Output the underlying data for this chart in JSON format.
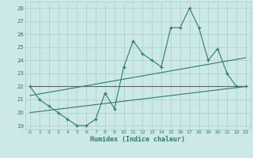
{
  "x": [
    0,
    1,
    2,
    3,
    4,
    5,
    6,
    7,
    8,
    9,
    10,
    11,
    12,
    13,
    14,
    15,
    16,
    17,
    18,
    19,
    20,
    21,
    22,
    23
  ],
  "humidex": [
    22,
    21,
    20.5,
    20,
    19.5,
    19,
    19,
    19.5,
    21.5,
    20.3,
    23.5,
    25.5,
    24.5,
    24,
    23.5,
    26.5,
    26.5,
    28,
    26.5,
    24,
    24.9,
    23,
    22,
    22
  ],
  "line1_x": [
    0,
    23
  ],
  "line1_y": [
    22,
    22
  ],
  "line2_x": [
    0,
    23
  ],
  "line2_y": [
    21.3,
    24.2
  ],
  "line3_x": [
    0,
    23
  ],
  "line3_y": [
    20.0,
    22.0
  ],
  "line_color": "#2e7b6e",
  "bg_color": "#cce8e8",
  "grid_color": "#aacece",
  "xlabel": "Humidex (Indice chaleur)",
  "ylim": [
    18.7,
    28.5
  ],
  "xlim": [
    -0.5,
    23.5
  ],
  "yticks": [
    19,
    20,
    21,
    22,
    23,
    24,
    25,
    26,
    27,
    28
  ],
  "xticks": [
    0,
    1,
    2,
    3,
    4,
    5,
    6,
    7,
    8,
    9,
    10,
    11,
    12,
    13,
    14,
    15,
    16,
    17,
    18,
    19,
    20,
    21,
    22,
    23
  ]
}
